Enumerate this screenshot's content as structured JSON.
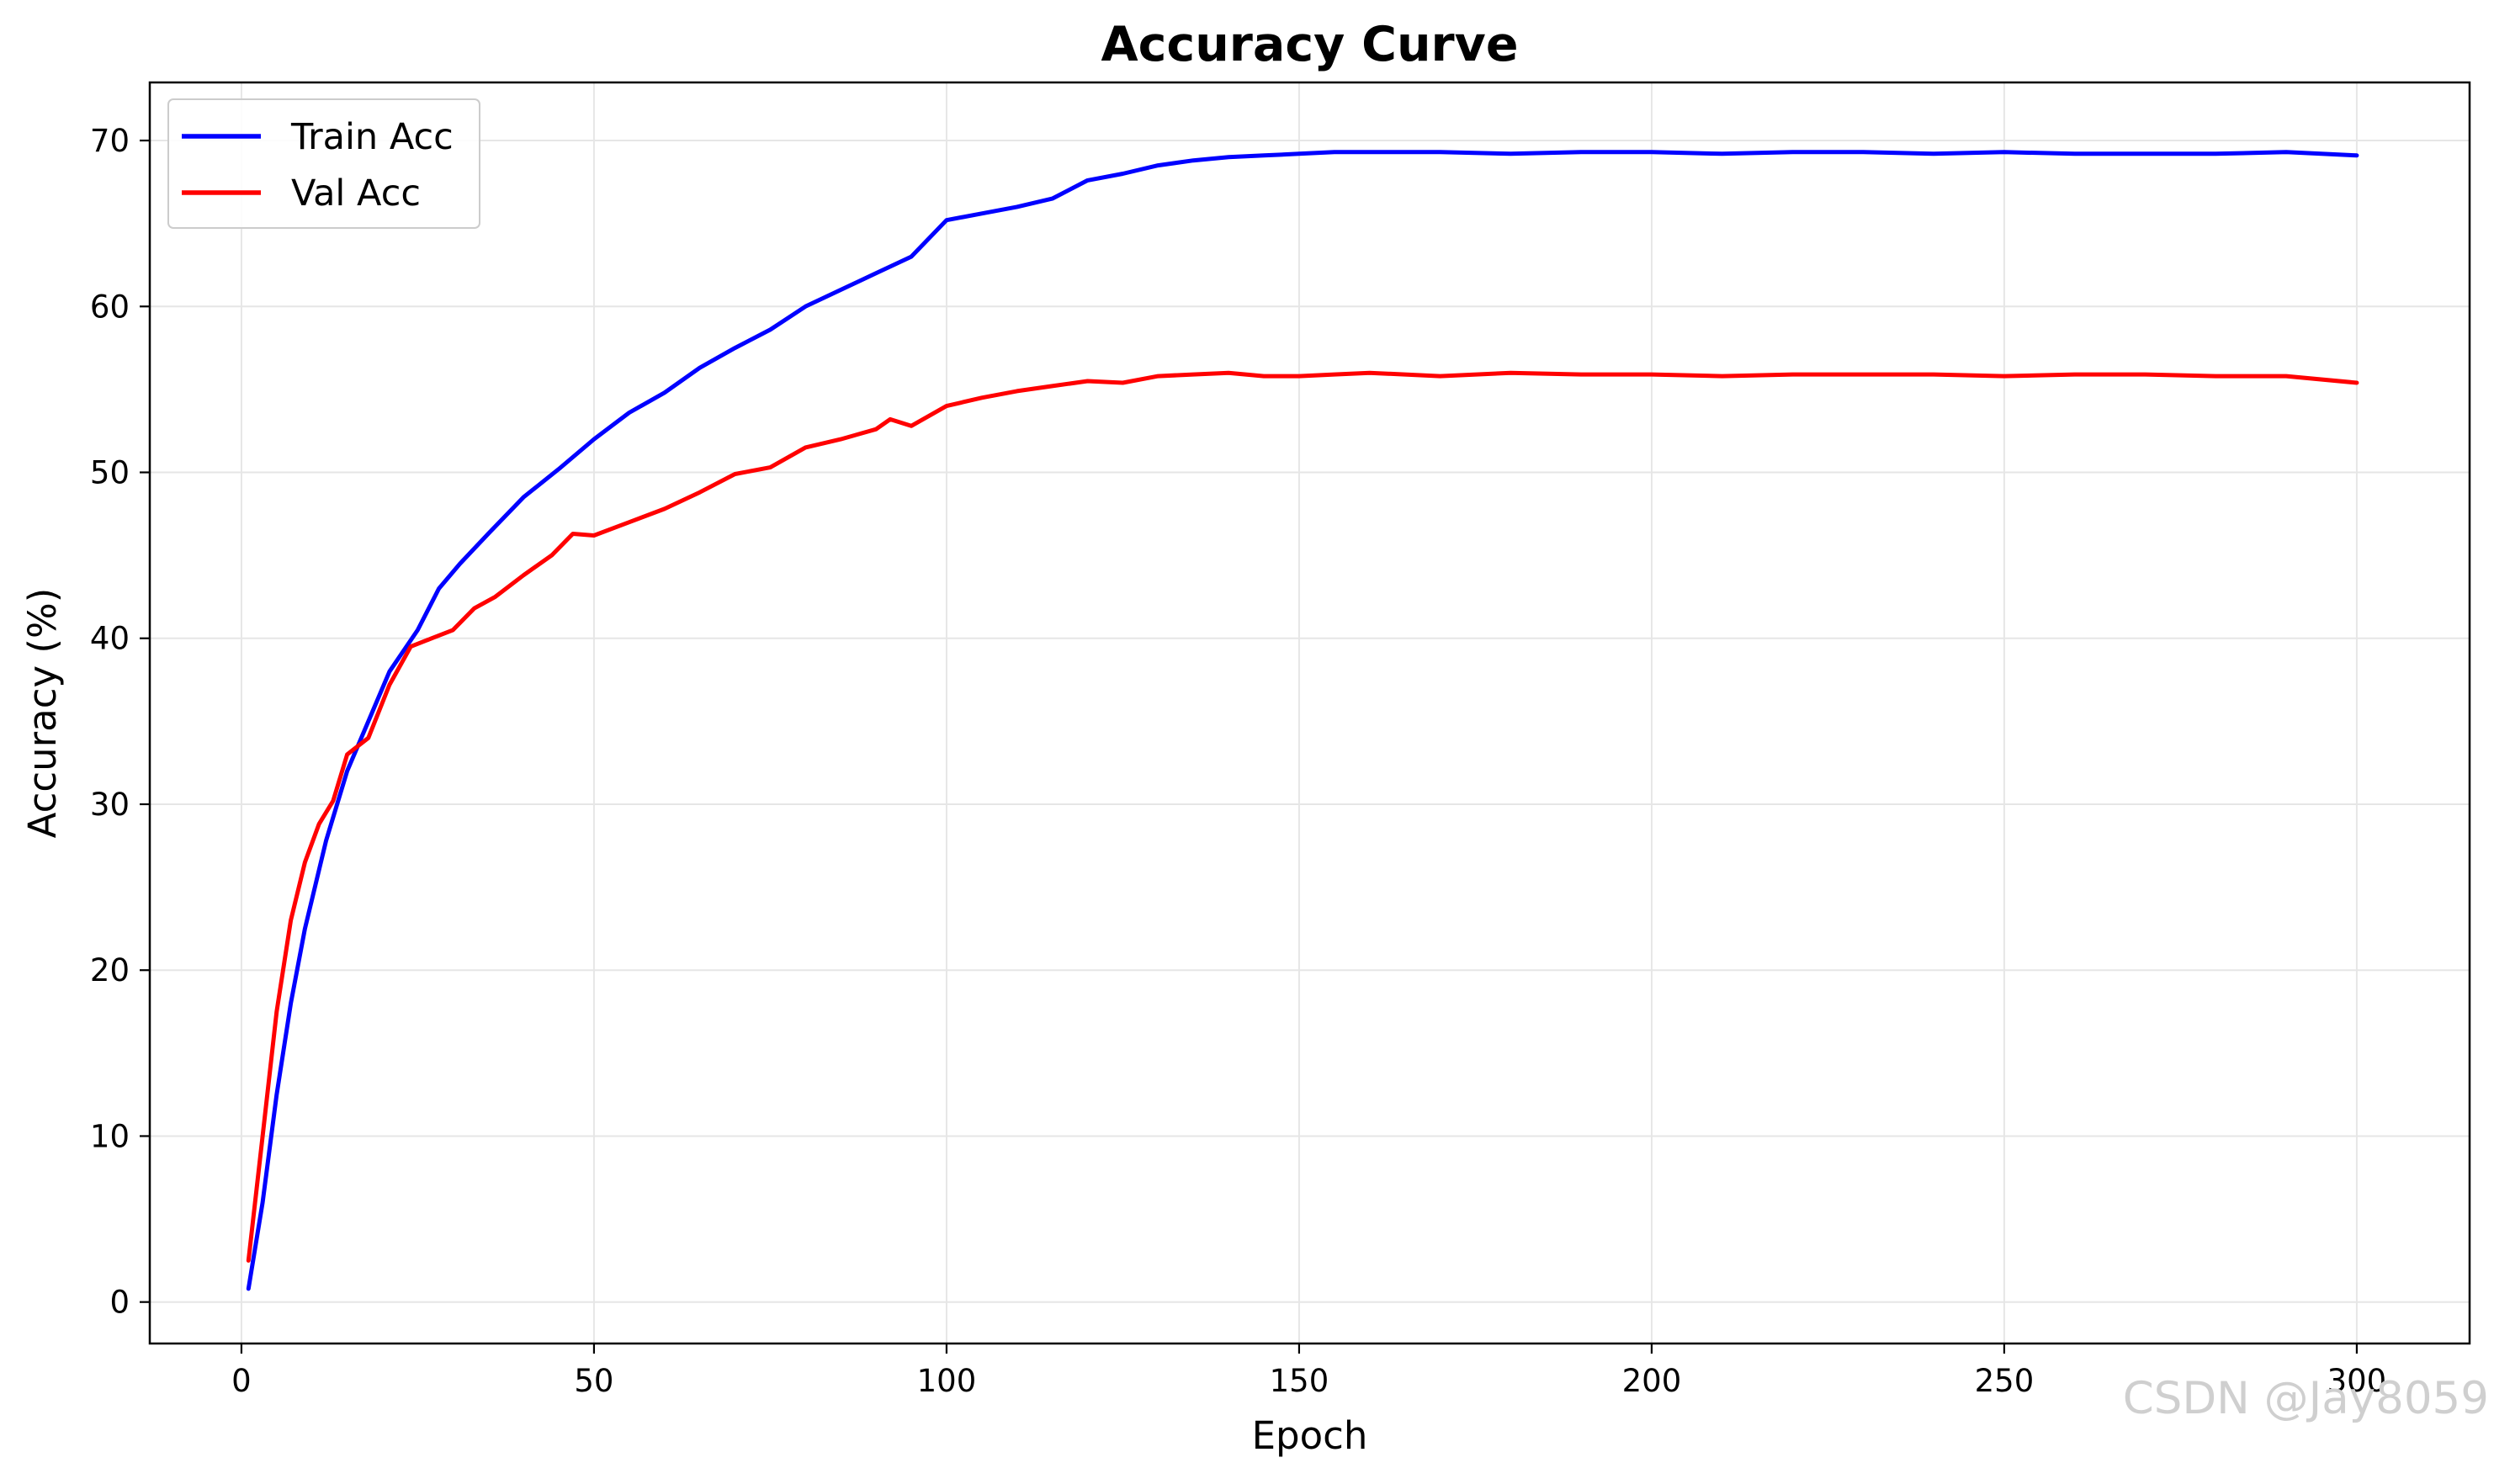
{
  "chart_data": {
    "type": "line",
    "title": "Accuracy Curve",
    "xlabel": "Epoch",
    "ylabel": "Accuracy (%)",
    "xlim": [
      -13,
      316
    ],
    "ylim": [
      -2.5,
      73.5
    ],
    "xticks": [
      0,
      50,
      100,
      150,
      200,
      250,
      300
    ],
    "yticks": [
      0,
      10,
      20,
      30,
      40,
      50,
      60,
      70
    ],
    "grid": true,
    "legend_position": "top-left",
    "series": [
      {
        "name": "Train Acc",
        "color": "#0000ff",
        "x": [
          1,
          3,
          5,
          7,
          9,
          12,
          15,
          18,
          21,
          25,
          28,
          31,
          35,
          40,
          45,
          50,
          55,
          60,
          65,
          70,
          75,
          80,
          85,
          90,
          95,
          100,
          105,
          110,
          115,
          120,
          125,
          130,
          135,
          140,
          145,
          150,
          155,
          160,
          170,
          180,
          190,
          200,
          210,
          220,
          230,
          240,
          250,
          260,
          270,
          280,
          290,
          300
        ],
        "y": [
          0.8,
          6.0,
          12.5,
          18.0,
          22.5,
          27.8,
          32.0,
          35.0,
          38.0,
          40.5,
          43.0,
          44.5,
          46.3,
          48.5,
          50.2,
          52.0,
          53.6,
          54.8,
          56.3,
          57.5,
          58.6,
          60.0,
          61.0,
          62.0,
          63.0,
          65.2,
          65.6,
          66.0,
          66.5,
          67.6,
          68.0,
          68.5,
          68.8,
          69.0,
          69.1,
          69.2,
          69.3,
          69.3,
          69.3,
          69.2,
          69.3,
          69.3,
          69.2,
          69.3,
          69.3,
          69.2,
          69.3,
          69.2,
          69.2,
          69.2,
          69.3,
          69.1
        ]
      },
      {
        "name": "Val Acc",
        "color": "#ff0000",
        "x": [
          1,
          3,
          5,
          7,
          9,
          11,
          13,
          15,
          18,
          21,
          24,
          27,
          30,
          33,
          36,
          40,
          44,
          47,
          50,
          55,
          60,
          65,
          70,
          75,
          80,
          85,
          90,
          92,
          95,
          100,
          105,
          110,
          115,
          120,
          125,
          130,
          135,
          140,
          145,
          150,
          155,
          160,
          170,
          180,
          190,
          200,
          210,
          220,
          230,
          240,
          250,
          260,
          270,
          280,
          290,
          300
        ],
        "y": [
          2.5,
          10.0,
          17.5,
          23.0,
          26.5,
          28.8,
          30.2,
          33.0,
          34.0,
          37.2,
          39.5,
          40.0,
          40.5,
          41.8,
          42.5,
          43.8,
          45.0,
          46.3,
          46.2,
          47.0,
          47.8,
          48.8,
          49.9,
          50.3,
          51.5,
          52.0,
          52.6,
          53.2,
          52.8,
          54.0,
          54.5,
          54.9,
          55.2,
          55.5,
          55.4,
          55.8,
          55.9,
          56.0,
          55.8,
          55.8,
          55.9,
          56.0,
          55.8,
          56.0,
          55.9,
          55.9,
          55.8,
          55.9,
          55.9,
          55.9,
          55.8,
          55.9,
          55.9,
          55.8,
          55.8,
          55.4
        ]
      }
    ]
  },
  "watermark": "CSDN @Jay8059"
}
